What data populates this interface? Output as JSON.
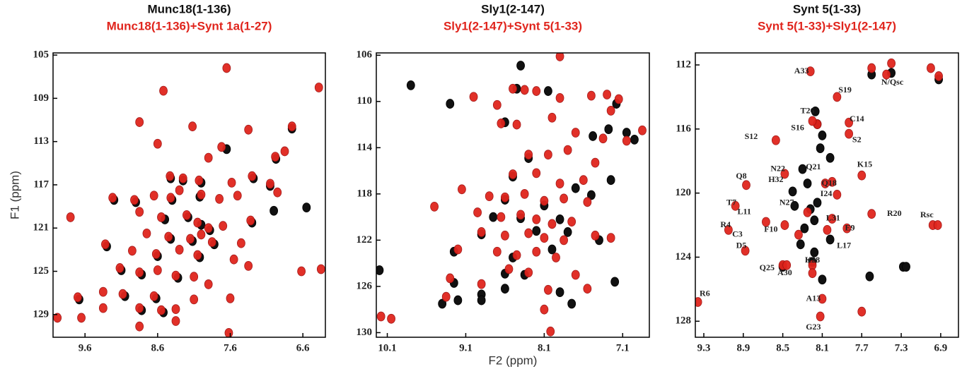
{
  "chart_data": [
    {
      "type": "scatter",
      "series": [
        {
          "name": "Munc18(1-136)",
          "color": "#111111",
          "x": [
            8.42,
            8.25,
            8.0,
            7.28,
            7.05,
            9.2,
            8.9,
            8.4,
            8.02,
            8.5,
            8.18,
            8.0,
            7.88,
            7.3,
            8.42,
            8.12,
            7.82,
            9.3,
            8.6,
            8.02,
            9.1,
            8.82,
            8.32,
            9.05,
            8.62,
            9.68,
            8.82,
            8.52,
            7.0,
            6.75,
            6.97,
            7.65,
            6.55
          ],
          "y": [
            116.4,
            116.6,
            116.8,
            116.4,
            117.1,
            118.4,
            118.6,
            118.4,
            118.1,
            120.2,
            120.0,
            120.7,
            121.2,
            120.5,
            122.0,
            122.2,
            122.5,
            122.7,
            123.6,
            123.7,
            124.9,
            125.3,
            125.6,
            127.3,
            127.5,
            127.6,
            128.6,
            128.8,
            119.4,
            111.8,
            114.6,
            113.7,
            119.1
          ]
        },
        {
          "name": "Munc18(1-136)+Synt 1a(1-27)",
          "color": "#e0251d",
          "x": [
            7.65,
            6.38,
            8.52,
            8.85,
            8.12,
            7.35,
            6.75,
            8.6,
            7.72,
            7.9,
            6.98,
            6.85,
            8.43,
            8.25,
            8.03,
            7.58,
            7.3,
            7.05,
            6.95,
            9.22,
            8.92,
            8.65,
            8.42,
            8.3,
            8.0,
            7.75,
            7.5,
            8.85,
            8.55,
            8.2,
            8.05,
            7.9,
            7.7,
            7.32,
            9.8,
            8.75,
            8.45,
            8.15,
            8.0,
            7.85,
            7.45,
            9.32,
            8.95,
            8.62,
            8.3,
            8.05,
            7.55,
            7.35,
            9.12,
            8.85,
            8.6,
            8.35,
            8.1,
            7.9,
            6.62,
            6.35,
            9.35,
            9.08,
            8.65,
            8.1,
            7.6,
            9.7,
            9.35,
            8.85,
            8.55,
            8.35,
            9.65,
            8.85,
            7.62,
            9.98,
            8.35
          ],
          "y": [
            106.2,
            108.0,
            108.3,
            111.2,
            111.6,
            111.9,
            111.6,
            113.2,
            113.5,
            114.5,
            114.4,
            113.9,
            116.2,
            116.4,
            116.6,
            116.8,
            116.2,
            116.9,
            117.7,
            118.2,
            118.4,
            118.0,
            118.2,
            117.5,
            117.9,
            118.3,
            118.0,
            119.5,
            120.0,
            119.8,
            120.5,
            121.0,
            120.8,
            120.3,
            120.0,
            121.5,
            121.8,
            122.0,
            121.6,
            122.3,
            122.4,
            122.5,
            123.1,
            123.4,
            123.0,
            123.5,
            123.9,
            124.5,
            124.7,
            125.1,
            124.9,
            125.4,
            125.5,
            126.2,
            125.0,
            124.8,
            126.9,
            127.1,
            127.3,
            127.6,
            127.5,
            127.4,
            128.4,
            128.4,
            128.6,
            128.5,
            129.3,
            130.1,
            130.7,
            129.3,
            129.6
          ]
        }
      ],
      "xlim": [
        10.04,
        6.29
      ],
      "xticks": [
        9.6,
        8.6,
        7.6,
        6.6
      ],
      "ylim": [
        104.8,
        131.1
      ],
      "yticks": [
        105,
        109,
        113,
        117,
        121,
        125,
        129
      ],
      "ylabel": "F1 (ppm)"
    },
    {
      "type": "scatter",
      "series": [
        {
          "name": "Sly1(2-147)",
          "color": "#111111",
          "x": [
            8.4,
            9.8,
            8.45,
            8.05,
            7.18,
            9.3,
            8.6,
            7.28,
            7.05,
            7.48,
            6.95,
            8.3,
            8.5,
            7.7,
            7.25,
            8.6,
            8.1,
            7.5,
            8.75,
            8.4,
            7.9,
            8.9,
            8.2,
            7.8,
            7.4,
            9.25,
            8.5,
            8.0,
            8.6,
            8.35,
            7.2,
            9.25,
            8.6,
            7.9,
            8.9,
            8.9,
            9.4,
            9.2,
            7.75,
            10.2
          ],
          "y": [
            106.9,
            108.6,
            108.9,
            109.1,
            110.2,
            110.2,
            111.8,
            112.4,
            112.7,
            113.0,
            113.3,
            114.9,
            116.5,
            117.5,
            116.8,
            118.5,
            119.0,
            118.1,
            120.0,
            120.1,
            120.2,
            121.5,
            121.2,
            121.3,
            122.0,
            123.0,
            123.5,
            122.8,
            124.9,
            125.0,
            125.6,
            125.7,
            126.2,
            126.5,
            126.7,
            127.2,
            127.5,
            127.2,
            127.5,
            124.6
          ]
        },
        {
          "name": "Sly1(2-147)+Synt 5(1-33)",
          "color": "#e0251d",
          "x": [
            7.9,
            8.5,
            8.35,
            8.2,
            7.9,
            7.5,
            7.3,
            7.15,
            9.0,
            8.7,
            7.25,
            8.0,
            8.45,
            8.65,
            7.7,
            7.35,
            7.05,
            6.85,
            8.3,
            8.05,
            7.8,
            7.45,
            8.5,
            8.2,
            7.9,
            7.6,
            9.15,
            8.8,
            8.6,
            8.35,
            8.1,
            7.85,
            7.55,
            9.5,
            8.95,
            8.65,
            8.4,
            8.2,
            8.0,
            7.75,
            8.9,
            8.6,
            8.3,
            8.1,
            7.85,
            7.45,
            7.25,
            9.2,
            8.7,
            8.45,
            8.2,
            7.95,
            8.55,
            8.3,
            7.7,
            9.3,
            8.9,
            8.05,
            7.55,
            9.35,
            10.18,
            10.05,
            8.02,
            8.1
          ],
          "y": [
            106.1,
            108.9,
            109.0,
            109.1,
            109.7,
            109.5,
            109.4,
            109.8,
            109.6,
            110.3,
            110.8,
            111.4,
            112.0,
            111.9,
            112.7,
            113.2,
            113.4,
            112.5,
            114.6,
            114.6,
            114.2,
            115.3,
            116.3,
            116.2,
            117.1,
            116.8,
            117.6,
            118.2,
            118.3,
            118.0,
            118.6,
            118.4,
            118.7,
            119.1,
            119.6,
            120.0,
            119.8,
            120.2,
            120.6,
            120.4,
            121.3,
            121.6,
            121.4,
            121.8,
            122.0,
            121.6,
            121.8,
            122.8,
            123.0,
            123.3,
            123.0,
            123.5,
            124.5,
            124.8,
            125.0,
            125.3,
            125.8,
            126.3,
            126.2,
            126.9,
            128.6,
            128.8,
            129.9,
            128.0
          ]
        }
      ],
      "xlim": [
        10.24,
        6.76
      ],
      "xticks": [
        10.1,
        9.1,
        8.1,
        7.1
      ],
      "ylim": [
        105.8,
        130.4
      ],
      "yticks": [
        106,
        110,
        114,
        118,
        122,
        126,
        130
      ],
      "xlabel": "F2 (ppm)"
    },
    {
      "type": "scatter",
      "series": [
        {
          "name": "Synt 5(1-33)",
          "color": "#111111",
          "x": [
            8.17,
            8.15,
            8.1,
            8.12,
            8.02,
            8.3,
            8.25,
            8.4,
            8.38,
            8.22,
            8.15,
            8.18,
            8.28,
            8.32,
            8.18,
            8.02,
            8.2,
            8.1,
            7.62,
            7.28,
            7.25,
            8.5,
            7.4,
            6.92,
            7.6
          ],
          "y": [
            114.9,
            115.7,
            116.4,
            117.2,
            117.8,
            118.5,
            119.4,
            119.9,
            120.8,
            121.0,
            120.6,
            121.7,
            122.2,
            123.2,
            123.7,
            122.9,
            124.3,
            125.4,
            125.2,
            124.6,
            124.6,
            124.6,
            112.5,
            112.9,
            112.6
          ]
        },
        {
          "name": "Synt 5(1-33)+Sly1(2-147)",
          "color": "#e0251d",
          "x": [
            8.22,
            7.6,
            7.4,
            7.45,
            6.92,
            7.0,
            7.95,
            8.15,
            8.2,
            7.83,
            7.83,
            8.57,
            7.7,
            8.87,
            8.48,
            8.07,
            8.0,
            7.95,
            8.98,
            7.6,
            6.98,
            6.93,
            8.67,
            8.48,
            8.05,
            7.85,
            8.0,
            8.34,
            8.5,
            8.46,
            8.2,
            8.1,
            8.12,
            9.36,
            9.05,
            8.88,
            8.25,
            7.7,
            8.2
          ],
          "y": [
            112.4,
            112.2,
            111.9,
            112.6,
            112.7,
            112.2,
            114.0,
            115.7,
            115.5,
            115.6,
            116.3,
            116.7,
            118.9,
            119.5,
            118.8,
            119.4,
            119.3,
            120.1,
            120.8,
            121.3,
            122.0,
            122.0,
            121.8,
            122.0,
            122.3,
            122.2,
            121.6,
            122.6,
            124.5,
            124.5,
            124.5,
            126.6,
            127.7,
            126.8,
            122.3,
            123.6,
            121.2,
            127.4,
            125.0
          ]
        }
      ],
      "xlim": [
        9.386,
        6.72
      ],
      "xticks": [
        9.3,
        8.9,
        8.5,
        8.1,
        7.7,
        7.3,
        6.9
      ],
      "ylim": [
        111.25,
        129.0
      ],
      "yticks": [
        112,
        116,
        120,
        124,
        128
      ],
      "annotations": [
        {
          "text": "A33",
          "x": 8.31,
          "y": 112.4
        },
        {
          "text": "N/Qsc",
          "x": 7.39,
          "y": 113.1
        },
        {
          "text": "S19",
          "x": 7.87,
          "y": 113.6
        },
        {
          "text": "T26",
          "x": 8.25,
          "y": 114.9
        },
        {
          "text": "C14",
          "x": 7.75,
          "y": 115.4
        },
        {
          "text": "S16",
          "x": 8.35,
          "y": 115.96
        },
        {
          "text": "S2",
          "x": 7.75,
          "y": 116.7
        },
        {
          "text": "S12",
          "x": 8.82,
          "y": 116.5
        },
        {
          "text": "N22",
          "x": 8.55,
          "y": 118.5
        },
        {
          "text": "Q21",
          "x": 8.19,
          "y": 118.4
        },
        {
          "text": "K15",
          "x": 7.67,
          "y": 118.25
        },
        {
          "text": "Q8",
          "x": 8.92,
          "y": 118.96
        },
        {
          "text": "H32",
          "x": 8.57,
          "y": 119.2
        },
        {
          "text": "Q18",
          "x": 8.03,
          "y": 119.4
        },
        {
          "text": "I24",
          "x": 8.06,
          "y": 120.06
        },
        {
          "text": "T7",
          "x": 9.02,
          "y": 120.63
        },
        {
          "text": "N27",
          "x": 8.46,
          "y": 120.63
        },
        {
          "text": "L11",
          "x": 8.89,
          "y": 121.2
        },
        {
          "text": "R20",
          "x": 7.37,
          "y": 121.3
        },
        {
          "text": "Rsc",
          "x": 7.04,
          "y": 121.4
        },
        {
          "text": "L31",
          "x": 7.99,
          "y": 121.6
        },
        {
          "text": "F10",
          "x": 8.62,
          "y": 122.3
        },
        {
          "text": "E9",
          "x": 7.82,
          "y": 122.2
        },
        {
          "text": "R4",
          "x": 9.08,
          "y": 122.0
        },
        {
          "text": "C3",
          "x": 8.96,
          "y": 122.6
        },
        {
          "text": "L17",
          "x": 7.88,
          "y": 123.3
        },
        {
          "text": "D5",
          "x": 8.92,
          "y": 123.3
        },
        {
          "text": "K28",
          "x": 8.2,
          "y": 124.2
        },
        {
          "text": "Q25",
          "x": 8.66,
          "y": 124.7
        },
        {
          "text": "A30",
          "x": 8.48,
          "y": 125.0
        },
        {
          "text": "R6",
          "x": 9.29,
          "y": 126.3
        },
        {
          "text": "A13",
          "x": 8.19,
          "y": 126.6
        },
        {
          "text": "G23",
          "x": 8.19,
          "y": 128.4
        }
      ]
    }
  ]
}
